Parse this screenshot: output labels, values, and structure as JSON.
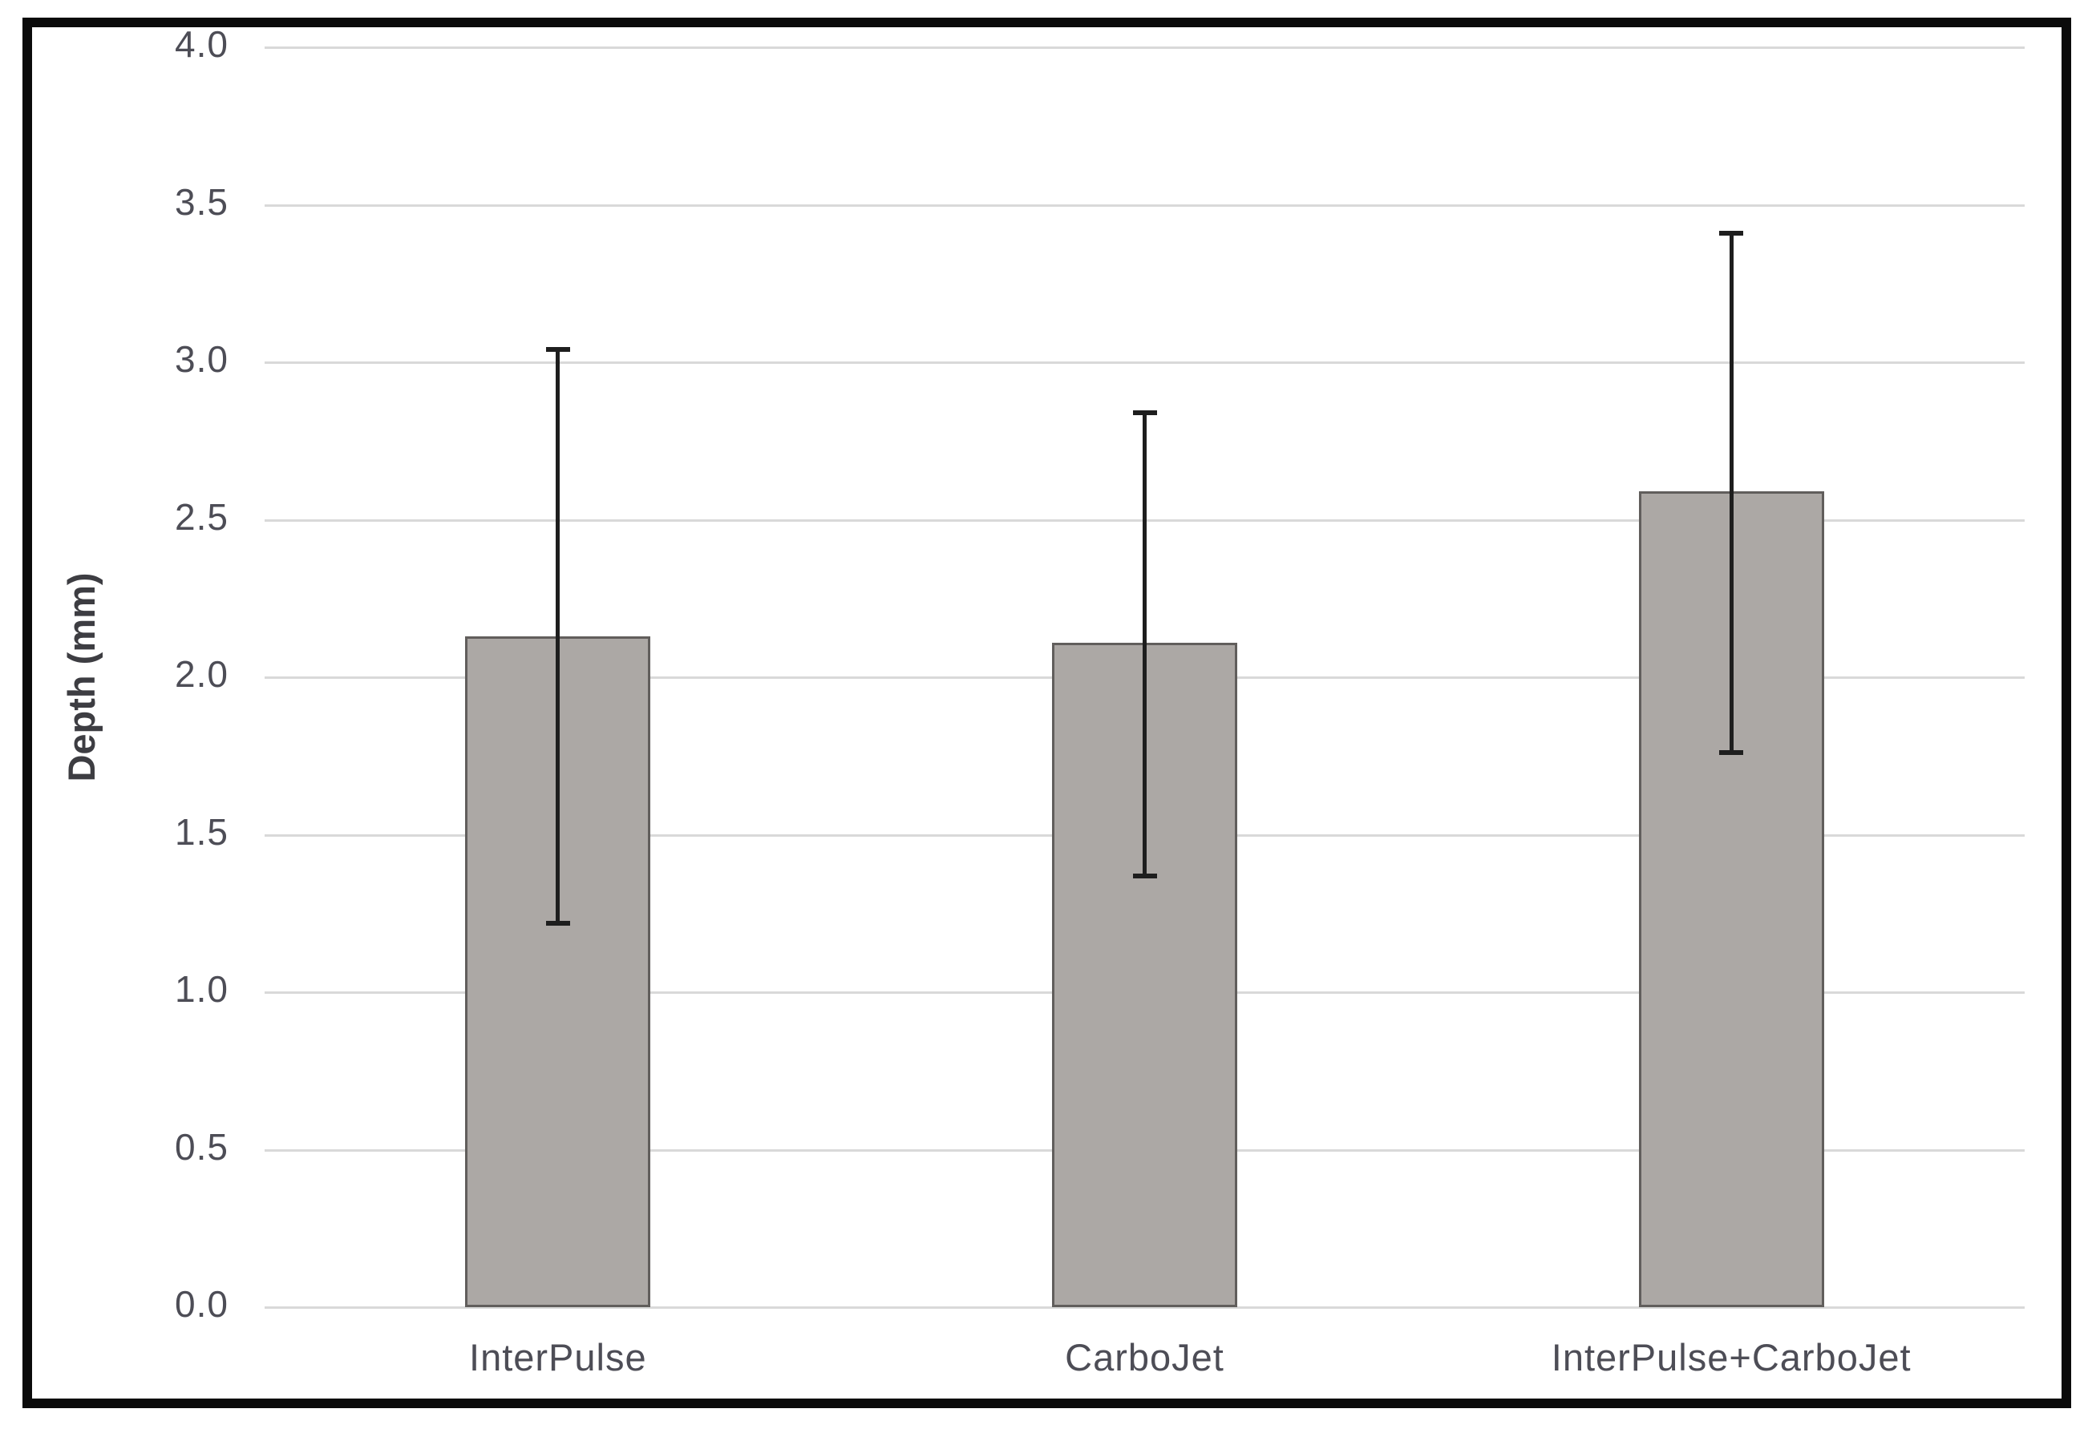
{
  "chart_data": {
    "type": "bar",
    "title": "",
    "xlabel": "",
    "ylabel": "Depth (mm)",
    "categories": [
      "InterPulse",
      "CarboJet",
      "InterPulse+CarboJet"
    ],
    "values": [
      2.13,
      2.11,
      2.59
    ],
    "errors": {
      "upper": [
        3.04,
        2.84,
        3.41
      ],
      "lower": [
        1.22,
        1.37,
        1.76
      ]
    },
    "ylim": [
      0.0,
      4.0
    ],
    "ytick_step": 0.5,
    "ytick_labels": [
      "0.0",
      "0.5",
      "1.0",
      "1.5",
      "2.0",
      "2.5",
      "3.0",
      "3.5",
      "4.0"
    ],
    "grid": true,
    "legend_position": "none",
    "colors": {
      "bar_fill": "#aca8a5",
      "bar_border": "#615e5c",
      "gridline": "#d9d9d9",
      "error_bar": "#1e1e1e",
      "tick_text": "#4d4d56",
      "axis_title_text": "#3d3d42",
      "frame_border": "#0b0b0b",
      "background": "#ffffff"
    }
  }
}
